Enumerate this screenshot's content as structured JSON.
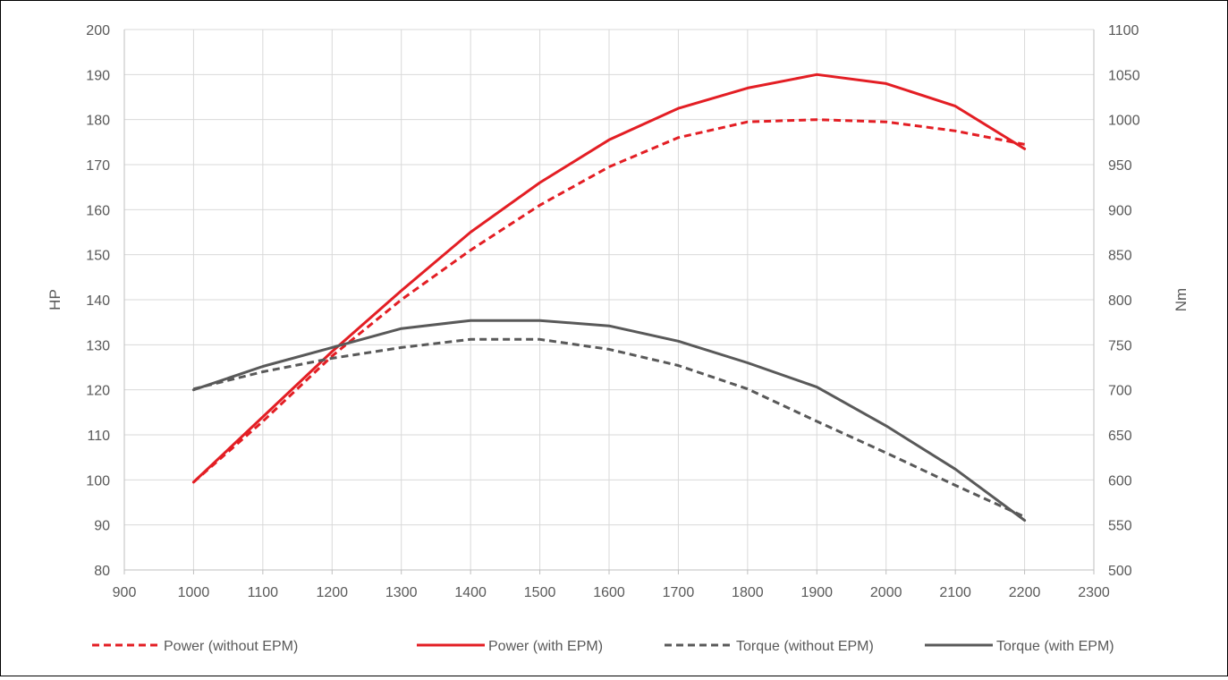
{
  "chart_data": {
    "type": "line",
    "title": "",
    "x_axis": {
      "label": "",
      "range": [
        900,
        2300
      ],
      "ticks": [
        900,
        1000,
        1100,
        1200,
        1300,
        1400,
        1500,
        1600,
        1700,
        1800,
        1900,
        2000,
        2100,
        2200,
        2300
      ]
    },
    "y_axis_left": {
      "label": "HP",
      "range": [
        80,
        200
      ],
      "ticks": [
        80,
        90,
        100,
        110,
        120,
        130,
        140,
        150,
        160,
        170,
        180,
        190,
        200
      ]
    },
    "y_axis_right": {
      "label": "Nm",
      "range": [
        500,
        1100
      ],
      "ticks": [
        500,
        550,
        600,
        650,
        700,
        750,
        800,
        850,
        900,
        950,
        1000,
        1050,
        1100
      ]
    },
    "grid": true,
    "legend_position": "bottom",
    "x": [
      1000,
      1100,
      1200,
      1300,
      1400,
      1500,
      1600,
      1700,
      1800,
      1900,
      2000,
      2100,
      2200
    ],
    "series": [
      {
        "name": "Power (without EPM)",
        "axis": "left",
        "color": "#e31e24",
        "dash": true,
        "values": [
          99.5,
          113,
          127.5,
          140,
          151,
          161,
          169.5,
          176,
          179.5,
          180,
          179.5,
          177.5,
          174.5
        ]
      },
      {
        "name": "Power (with EPM)",
        "axis": "left",
        "color": "#e31e24",
        "dash": false,
        "values": [
          99.5,
          114,
          128.5,
          142,
          155,
          166,
          175.5,
          182.5,
          187,
          190,
          188,
          183,
          173.5
        ]
      },
      {
        "name": "Torque (without EPM)",
        "axis": "right",
        "color": "#595959",
        "dash": true,
        "values": [
          701,
          720,
          735,
          747,
          756,
          756,
          745,
          727,
          701,
          665,
          630,
          594,
          559
        ]
      },
      {
        "name": "Torque (with EPM)",
        "axis": "right",
        "color": "#595959",
        "dash": false,
        "values": [
          700,
          726,
          747,
          768,
          777,
          777,
          771,
          754,
          730,
          703,
          660,
          612,
          555
        ]
      }
    ]
  }
}
